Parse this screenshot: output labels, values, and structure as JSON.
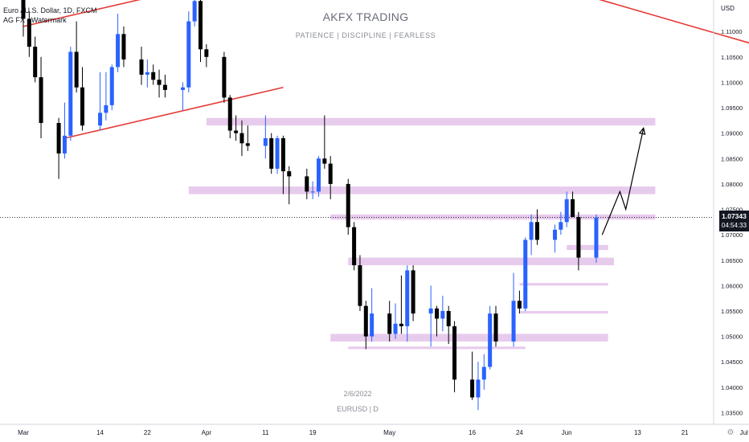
{
  "header": {
    "symbol": "Euro / U.S. Dollar, 1D, FXCM",
    "indicator": "AG FX - Watermark"
  },
  "watermark": {
    "title": "AKFX TRADING",
    "subtitle": "PATIENCE  |  DISCIPLINE  |  FEARLESS",
    "date": "2/6/2022",
    "pair": "EURUSD | D"
  },
  "price_tag": {
    "price": "1.07343",
    "countdown": "04:54:33"
  },
  "colors": {
    "bull": "#2962ff",
    "bear": "#000000",
    "zone": "#e1bee7",
    "trendline": "#e53935",
    "grid": "#ffffff",
    "axis_text": "#131722",
    "current_price_line": "#131722"
  },
  "icons": {
    "corner": "gear-icon"
  },
  "chart_data": {
    "type": "candlestick",
    "symbol": "EURUSD",
    "timeframe": "1D",
    "y_axis_unit": "USD",
    "ylim": [
      1.0327,
      1.1162
    ],
    "y_ticks": [
      "1.11000",
      "1.10500",
      "1.10000",
      "1.09500",
      "1.09000",
      "1.08500",
      "1.08000",
      "1.07500",
      "1.07000",
      "1.06500",
      "1.06000",
      "1.05500",
      "1.05000",
      "1.04500",
      "1.04000",
      "1.03500"
    ],
    "x_ticks": [
      {
        "label": "Mar",
        "date": "2022-03-01"
      },
      {
        "label": "14",
        "date": "2022-03-14"
      },
      {
        "label": "22",
        "date": "2022-03-22"
      },
      {
        "label": "Apr",
        "date": "2022-04-01"
      },
      {
        "label": "11",
        "date": "2022-04-11"
      },
      {
        "label": "19",
        "date": "2022-04-19"
      },
      {
        "label": "May",
        "date": "2022-05-02"
      },
      {
        "label": "16",
        "date": "2022-05-16"
      },
      {
        "label": "24",
        "date": "2022-05-24"
      },
      {
        "label": "Jun",
        "date": "2022-06-01"
      },
      {
        "label": "13",
        "date": "2022-06-13"
      },
      {
        "label": "21",
        "date": "2022-06-21"
      },
      {
        "label": "Jul",
        "date": "2022-07-01"
      }
    ],
    "current_price": 1.07343,
    "candles": [
      {
        "date": "2022-03-01",
        "o": 1.118,
        "h": 1.12,
        "l": 1.109,
        "c": 1.1125
      },
      {
        "date": "2022-03-02",
        "o": 1.1125,
        "h": 1.114,
        "l": 1.105,
        "c": 1.107
      },
      {
        "date": "2022-03-03",
        "o": 1.107,
        "h": 1.109,
        "l": 1.1,
        "c": 1.101
      },
      {
        "date": "2022-03-04",
        "o": 1.101,
        "h": 1.105,
        "l": 1.089,
        "c": 1.092
      },
      {
        "date": "2022-03-07",
        "o": 1.092,
        "h": 1.093,
        "l": 1.081,
        "c": 1.086
      },
      {
        "date": "2022-03-08",
        "o": 1.086,
        "h": 1.096,
        "l": 1.085,
        "c": 1.0895
      },
      {
        "date": "2022-03-09",
        "o": 1.0895,
        "h": 1.107,
        "l": 1.0885,
        "c": 1.106
      },
      {
        "date": "2022-03-10",
        "o": 1.106,
        "h": 1.112,
        "l": 1.098,
        "c": 1.099
      },
      {
        "date": "2022-03-11",
        "o": 1.099,
        "h": 1.103,
        "l": 1.0905,
        "c": 1.0915
      },
      {
        "date": "2022-03-14",
        "o": 1.0915,
        "h": 1.102,
        "l": 1.0905,
        "c": 1.094
      },
      {
        "date": "2022-03-15",
        "o": 1.094,
        "h": 1.102,
        "l": 1.0925,
        "c": 1.0955
      },
      {
        "date": "2022-03-16",
        "o": 1.0955,
        "h": 1.1035,
        "l": 1.0945,
        "c": 1.103
      },
      {
        "date": "2022-03-17",
        "o": 1.103,
        "h": 1.1135,
        "l": 1.102,
        "c": 1.1095
      },
      {
        "date": "2022-03-18",
        "o": 1.1095,
        "h": 1.111,
        "l": 1.103,
        "c": 1.1045
      },
      {
        "date": "2022-03-21",
        "o": 1.1045,
        "h": 1.107,
        "l": 1.0995,
        "c": 1.1015
      },
      {
        "date": "2022-03-22",
        "o": 1.1015,
        "h": 1.1045,
        "l": 1.099,
        "c": 1.102
      },
      {
        "date": "2022-03-23",
        "o": 1.102,
        "h": 1.1035,
        "l": 1.0995,
        "c": 1.1005
      },
      {
        "date": "2022-03-24",
        "o": 1.1005,
        "h": 1.1025,
        "l": 1.097,
        "c": 1.0995
      },
      {
        "date": "2022-03-25",
        "o": 1.0995,
        "h": 1.1015,
        "l": 1.097,
        "c": 1.0985
      },
      {
        "date": "2022-03-28",
        "o": 1.0985,
        "h": 1.1,
        "l": 1.0945,
        "c": 1.099
      },
      {
        "date": "2022-03-29",
        "o": 1.099,
        "h": 1.114,
        "l": 1.098,
        "c": 1.112
      },
      {
        "date": "2022-03-30",
        "o": 1.112,
        "h": 1.1185,
        "l": 1.111,
        "c": 1.116
      },
      {
        "date": "2022-03-31",
        "o": 1.116,
        "h": 1.118,
        "l": 1.104,
        "c": 1.1065
      },
      {
        "date": "2022-04-01",
        "o": 1.1065,
        "h": 1.1075,
        "l": 1.103,
        "c": 1.105
      },
      {
        "date": "2022-04-04",
        "o": 1.105,
        "h": 1.106,
        "l": 1.096,
        "c": 1.097
      },
      {
        "date": "2022-04-05",
        "o": 1.097,
        "h": 1.0975,
        "l": 1.089,
        "c": 1.0905
      },
      {
        "date": "2022-04-06",
        "o": 1.0905,
        "h": 1.0935,
        "l": 1.0885,
        "c": 1.09
      },
      {
        "date": "2022-04-07",
        "o": 1.09,
        "h": 1.0925,
        "l": 1.0855,
        "c": 1.088
      },
      {
        "date": "2022-04-08",
        "o": 1.088,
        "h": 1.0915,
        "l": 1.0865,
        "c": 1.0875
      },
      {
        "date": "2022-04-11",
        "o": 1.0875,
        "h": 1.0935,
        "l": 1.085,
        "c": 1.089
      },
      {
        "date": "2022-04-12",
        "o": 1.089,
        "h": 1.09,
        "l": 1.082,
        "c": 1.083
      },
      {
        "date": "2022-04-13",
        "o": 1.083,
        "h": 1.0895,
        "l": 1.082,
        "c": 1.089
      },
      {
        "date": "2022-04-14",
        "o": 1.089,
        "h": 1.0895,
        "l": 1.078,
        "c": 1.0825
      },
      {
        "date": "2022-04-15",
        "o": 1.0825,
        "h": 1.0835,
        "l": 1.076,
        "c": 1.0815
      },
      {
        "date": "2022-04-18",
        "o": 1.0815,
        "h": 1.083,
        "l": 1.077,
        "c": 1.0785
      },
      {
        "date": "2022-04-19",
        "o": 1.0785,
        "h": 1.0805,
        "l": 1.077,
        "c": 1.0785
      },
      {
        "date": "2022-04-20",
        "o": 1.0785,
        "h": 1.0855,
        "l": 1.0775,
        "c": 1.085
      },
      {
        "date": "2022-04-21",
        "o": 1.085,
        "h": 1.0935,
        "l": 1.083,
        "c": 1.084
      },
      {
        "date": "2022-04-22",
        "o": 1.084,
        "h": 1.0855,
        "l": 1.077,
        "c": 1.08
      },
      {
        "date": "2022-04-25",
        "o": 1.08,
        "h": 1.081,
        "l": 1.07,
        "c": 1.0715
      },
      {
        "date": "2022-04-26",
        "o": 1.0715,
        "h": 1.0725,
        "l": 1.063,
        "c": 1.064
      },
      {
        "date": "2022-04-27",
        "o": 1.064,
        "h": 1.066,
        "l": 1.055,
        "c": 1.056
      },
      {
        "date": "2022-04-28",
        "o": 1.056,
        "h": 1.057,
        "l": 1.0475,
        "c": 1.05
      },
      {
        "date": "2022-04-29",
        "o": 1.05,
        "h": 1.0595,
        "l": 1.049,
        "c": 1.0545
      },
      {
        "date": "2022-05-02",
        "o": 1.0545,
        "h": 1.057,
        "l": 1.049,
        "c": 1.0505
      },
      {
        "date": "2022-05-03",
        "o": 1.0505,
        "h": 1.0565,
        "l": 1.0495,
        "c": 1.0525
      },
      {
        "date": "2022-05-04",
        "o": 1.0525,
        "h": 1.062,
        "l": 1.0505,
        "c": 1.052
      },
      {
        "date": "2022-05-05",
        "o": 1.052,
        "h": 1.064,
        "l": 1.049,
        "c": 1.063
      },
      {
        "date": "2022-05-06",
        "o": 1.063,
        "h": 1.064,
        "l": 1.053,
        "c": 1.0545
      },
      {
        "date": "2022-05-09",
        "o": 1.0545,
        "h": 1.06,
        "l": 1.048,
        "c": 1.0555
      },
      {
        "date": "2022-05-10",
        "o": 1.0555,
        "h": 1.056,
        "l": 1.05,
        "c": 1.0535
      },
      {
        "date": "2022-05-11",
        "o": 1.0535,
        "h": 1.058,
        "l": 1.051,
        "c": 1.055
      },
      {
        "date": "2022-05-12",
        "o": 1.055,
        "h": 1.056,
        "l": 1.0485,
        "c": 1.052
      },
      {
        "date": "2022-05-13",
        "o": 1.052,
        "h": 1.053,
        "l": 1.039,
        "c": 1.0415
      },
      {
        "date": "2022-05-16",
        "o": 1.0415,
        "h": 1.047,
        "l": 1.0375,
        "c": 1.038
      },
      {
        "date": "2022-05-17",
        "o": 1.038,
        "h": 1.045,
        "l": 1.0355,
        "c": 1.0415
      },
      {
        "date": "2022-05-18",
        "o": 1.0415,
        "h": 1.0465,
        "l": 1.0395,
        "c": 1.044
      },
      {
        "date": "2022-05-19",
        "o": 1.044,
        "h": 1.056,
        "l": 1.0435,
        "c": 1.0545
      },
      {
        "date": "2022-05-20",
        "o": 1.0545,
        "h": 1.056,
        "l": 1.048,
        "c": 1.049
      },
      {
        "date": "2022-05-23",
        "o": 1.049,
        "h": 1.0625,
        "l": 1.048,
        "c": 1.057
      },
      {
        "date": "2022-05-24",
        "o": 1.057,
        "h": 1.059,
        "l": 1.0545,
        "c": 1.0555
      },
      {
        "date": "2022-05-25",
        "o": 1.0555,
        "h": 1.0695,
        "l": 1.055,
        "c": 1.069
      },
      {
        "date": "2022-05-26",
        "o": 1.069,
        "h": 1.074,
        "l": 1.066,
        "c": 1.0725
      },
      {
        "date": "2022-05-27",
        "o": 1.0725,
        "h": 1.075,
        "l": 1.068,
        "c": 1.069
      },
      {
        "date": "2022-05-30",
        "o": 1.069,
        "h": 1.072,
        "l": 1.0665,
        "c": 1.071
      },
      {
        "date": "2022-05-31",
        "o": 1.071,
        "h": 1.0745,
        "l": 1.07,
        "c": 1.0725
      },
      {
        "date": "2022-06-01",
        "o": 1.0725,
        "h": 1.0785,
        "l": 1.0715,
        "c": 1.077
      },
      {
        "date": "2022-06-02",
        "o": 1.077,
        "h": 1.0785,
        "l": 1.0735,
        "c": 1.0735
      },
      {
        "date": "2022-06-03",
        "o": 1.0735,
        "h": 1.0745,
        "l": 1.063,
        "c": 1.0655
      },
      {
        "date": "2022-06-06",
        "o": 1.0655,
        "h": 1.074,
        "l": 1.0645,
        "c": 1.0734
      }
    ],
    "zones": [
      {
        "date_from": "2022-04-01",
        "date_to": "2022-06-16",
        "price_from": 1.0915,
        "price_to": 1.093
      },
      {
        "date_from": "2022-03-29",
        "date_to": "2022-06-16",
        "price_from": 1.078,
        "price_to": 1.0795
      },
      {
        "date_from": "2022-04-22",
        "date_to": "2022-06-16",
        "price_from": 1.073,
        "price_to": 1.074
      },
      {
        "date_from": "2022-06-01",
        "date_to": "2022-06-08",
        "price_from": 1.067,
        "price_to": 1.068
      },
      {
        "date_from": "2022-04-25",
        "date_to": "2022-06-09",
        "price_from": 1.064,
        "price_to": 1.0655
      },
      {
        "date_from": "2022-05-24",
        "date_to": "2022-06-08",
        "price_from": 1.06,
        "price_to": 1.0605
      },
      {
        "date_from": "2022-05-24",
        "date_to": "2022-06-08",
        "price_from": 1.0545,
        "price_to": 1.055
      },
      {
        "date_from": "2022-04-22",
        "date_to": "2022-06-08",
        "price_from": 1.049,
        "price_to": 1.0505
      },
      {
        "date_from": "2022-04-25",
        "date_to": "2022-05-25",
        "price_from": 1.0475,
        "price_to": 1.048
      }
    ],
    "trendlines": [
      {
        "from": {
          "date": "2022-03-01",
          "price": 1.111
        },
        "to": {
          "date": "2022-03-29",
          "price": 1.1185
        }
      },
      {
        "from": {
          "date": "2022-03-08",
          "price": 1.089
        },
        "to": {
          "date": "2022-04-14",
          "price": 1.099
        }
      },
      {
        "from": {
          "date": "2022-05-31",
          "price": 1.1185
        },
        "to": {
          "date": "2022-07-13",
          "price": 1.104
        }
      }
    ],
    "projection_path": [
      {
        "date": "2022-06-07",
        "price": 1.07
      },
      {
        "date": "2022-06-10",
        "price": 1.0785
      },
      {
        "date": "2022-06-11",
        "price": 1.075
      },
      {
        "date": "2022-06-14",
        "price": 1.091
      }
    ]
  }
}
